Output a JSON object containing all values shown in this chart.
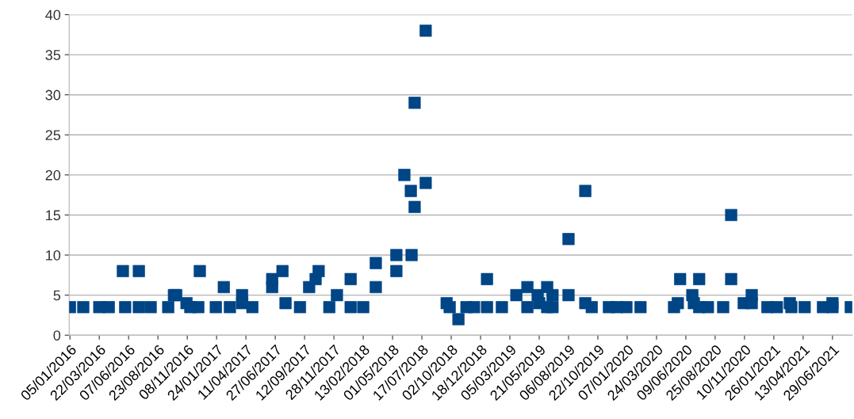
{
  "chart_data": {
    "type": "scatter",
    "marker": "square",
    "grid": "y",
    "legend": false,
    "xlim": [
      "2016-01-03",
      "2021-08-20"
    ],
    "ylim": [
      0,
      40
    ],
    "yticks": [
      0,
      5,
      10,
      15,
      20,
      25,
      30,
      35,
      40
    ],
    "xticks": [
      {
        "value": "2016-01-05",
        "label": "05/01/2016"
      },
      {
        "value": "2016-03-22",
        "label": "22/03/2016"
      },
      {
        "value": "2016-06-07",
        "label": "07/06/2016"
      },
      {
        "value": "2016-08-23",
        "label": "23/08/2016"
      },
      {
        "value": "2016-11-08",
        "label": "08/11/2016"
      },
      {
        "value": "2017-01-24",
        "label": "24/01/2017"
      },
      {
        "value": "2017-04-11",
        "label": "11/04/2017"
      },
      {
        "value": "2017-06-27",
        "label": "27/06/2017"
      },
      {
        "value": "2017-09-12",
        "label": "12/09/2017"
      },
      {
        "value": "2017-11-28",
        "label": "28/11/2017"
      },
      {
        "value": "2018-02-13",
        "label": "13/02/2018"
      },
      {
        "value": "2018-05-01",
        "label": "01/05/2018"
      },
      {
        "value": "2018-07-17",
        "label": "17/07/2018"
      },
      {
        "value": "2018-10-02",
        "label": "02/10/2018"
      },
      {
        "value": "2018-12-18",
        "label": "18/12/2018"
      },
      {
        "value": "2019-03-05",
        "label": "05/03/2019"
      },
      {
        "value": "2019-05-21",
        "label": "21/05/2019"
      },
      {
        "value": "2019-08-06",
        "label": "06/08/2019"
      },
      {
        "value": "2019-10-22",
        "label": "22/10/2019"
      },
      {
        "value": "2020-01-07",
        "label": "07/01/2020"
      },
      {
        "value": "2020-03-24",
        "label": "24/03/2020"
      },
      {
        "value": "2020-06-09",
        "label": "09/06/2020"
      },
      {
        "value": "2020-08-25",
        "label": "25/08/2020"
      },
      {
        "value": "2020-11-10",
        "label": "10/11/2020"
      },
      {
        "value": "2021-01-26",
        "label": "26/01/2021"
      },
      {
        "value": "2021-04-13",
        "label": "13/04/2021"
      },
      {
        "value": "2021-06-29",
        "label": "29/06/2021"
      }
    ],
    "series": [
      {
        "color": "#004586",
        "x": [
          "2016-01-05",
          "2016-02-09",
          "2016-03-22",
          "2016-04-16",
          "2016-05-23",
          "2016-05-29",
          "2016-07-04",
          "2016-07-04",
          "2016-08-04",
          "2016-09-19",
          "2016-10-04",
          "2016-10-10",
          "2016-11-06",
          "2016-11-16",
          "2016-12-07",
          "2016-12-11",
          "2017-01-22",
          "2017-02-12",
          "2017-02-28",
          "2017-04-01",
          "2017-04-01",
          "2017-04-28",
          "2017-06-19",
          "2017-06-19",
          "2017-07-16",
          "2017-07-24",
          "2017-08-31",
          "2017-09-24",
          "2017-10-11",
          "2017-10-19",
          "2017-11-16",
          "2017-12-06",
          "2018-01-11",
          "2018-01-11",
          "2018-02-13",
          "2018-03-18",
          "2018-03-18",
          "2018-05-11",
          "2018-05-11",
          "2018-06-01",
          "2018-06-18",
          "2018-06-20",
          "2018-06-28",
          "2018-06-28",
          "2018-07-27",
          "2018-07-27",
          "2018-09-20",
          "2018-09-28",
          "2018-10-21",
          "2018-11-11",
          "2018-12-01",
          "2019-01-04",
          "2019-01-04",
          "2019-02-12",
          "2019-03-22",
          "2019-04-20",
          "2019-04-20",
          "2019-05-17",
          "2019-05-21",
          "2019-06-11",
          "2019-06-11",
          "2019-06-25",
          "2019-06-25",
          "2019-08-06",
          "2019-08-06",
          "2019-09-19",
          "2019-09-19",
          "2019-10-06",
          "2019-11-20",
          "2019-12-11",
          "2020-01-05",
          "2020-02-11",
          "2020-05-09",
          "2020-05-19",
          "2020-05-25",
          "2020-06-26",
          "2020-06-30",
          "2020-07-14",
          "2020-07-14",
          "2020-08-06",
          "2020-09-15",
          "2020-10-06",
          "2020-10-06",
          "2020-11-08",
          "2020-11-29",
          "2020-11-29",
          "2021-01-09",
          "2021-02-03",
          "2021-03-09",
          "2021-03-13",
          "2021-04-17",
          "2021-06-04",
          "2021-06-29",
          "2021-06-29",
          "2021-08-16"
        ],
        "values": [
          3.5,
          3.5,
          3.5,
          3.5,
          8,
          3.5,
          8,
          3.5,
          3.5,
          3.5,
          5,
          5,
          4,
          3.5,
          3.5,
          8,
          3.5,
          6,
          3.5,
          5,
          4,
          3.5,
          7,
          6,
          8,
          4,
          3.5,
          6,
          7,
          8,
          3.5,
          5,
          7,
          3.5,
          3.5,
          9,
          6,
          8,
          10,
          20,
          18,
          10,
          16,
          29,
          38,
          19,
          4,
          3.5,
          2,
          3.5,
          3.5,
          7,
          3.5,
          3.5,
          5,
          6,
          3.5,
          5,
          4,
          6,
          3.5,
          5,
          3.5,
          12,
          5,
          18,
          4,
          3.5,
          3.5,
          3.5,
          3.5,
          3.5,
          3.5,
          4,
          7,
          5,
          4,
          7,
          3.5,
          3.5,
          3.5,
          15,
          7,
          4,
          5,
          4,
          3.5,
          3.5,
          4,
          3.5,
          3.5,
          3.5,
          4,
          3.5,
          3.5
        ]
      }
    ]
  }
}
